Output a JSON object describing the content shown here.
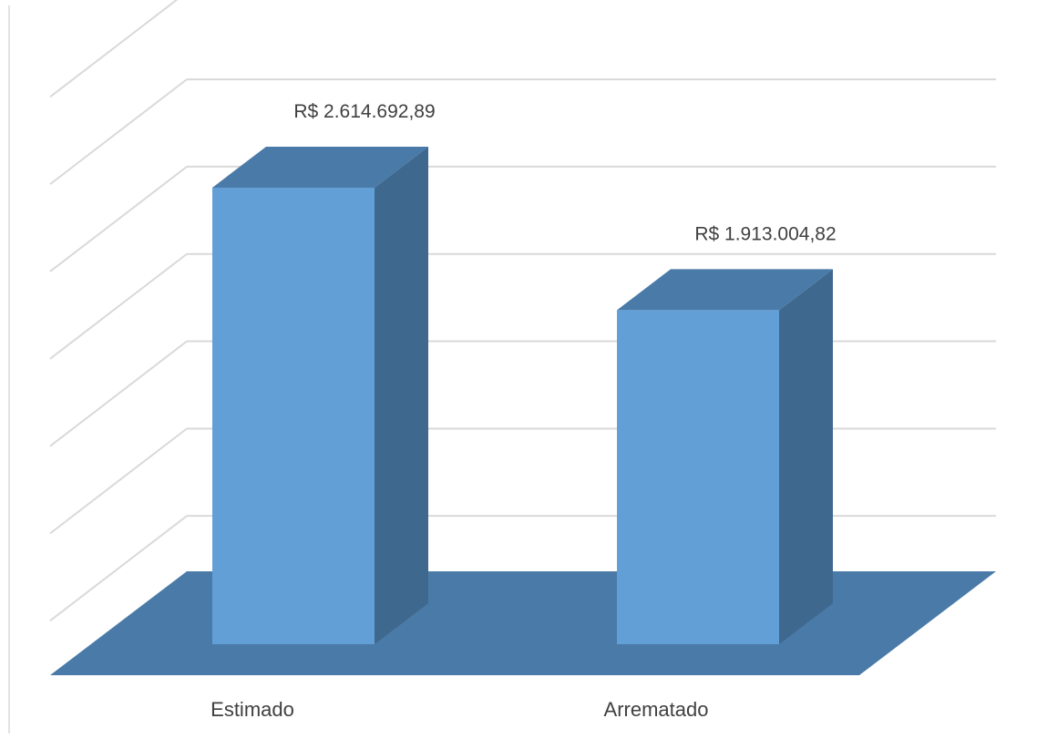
{
  "chart_data": {
    "type": "bar",
    "style": "3d-column",
    "categories": [
      "Estimado",
      "Arrematado"
    ],
    "values": [
      2614692.89,
      1913004.82
    ],
    "data_labels": [
      "R$ 2.614.692,89",
      "R$ 1.913.004,82"
    ],
    "title": "",
    "xlabel": "",
    "ylabel": "",
    "ylim": [
      0,
      3500000
    ],
    "grid": true,
    "legend": "none",
    "colors": {
      "bar_front": "#629fd6",
      "bar_top": "#4a7aa7",
      "bar_side": "#3e688e",
      "floor": "#4a7aa7",
      "gridline": "#d9d9d9",
      "text": "#404040"
    }
  }
}
